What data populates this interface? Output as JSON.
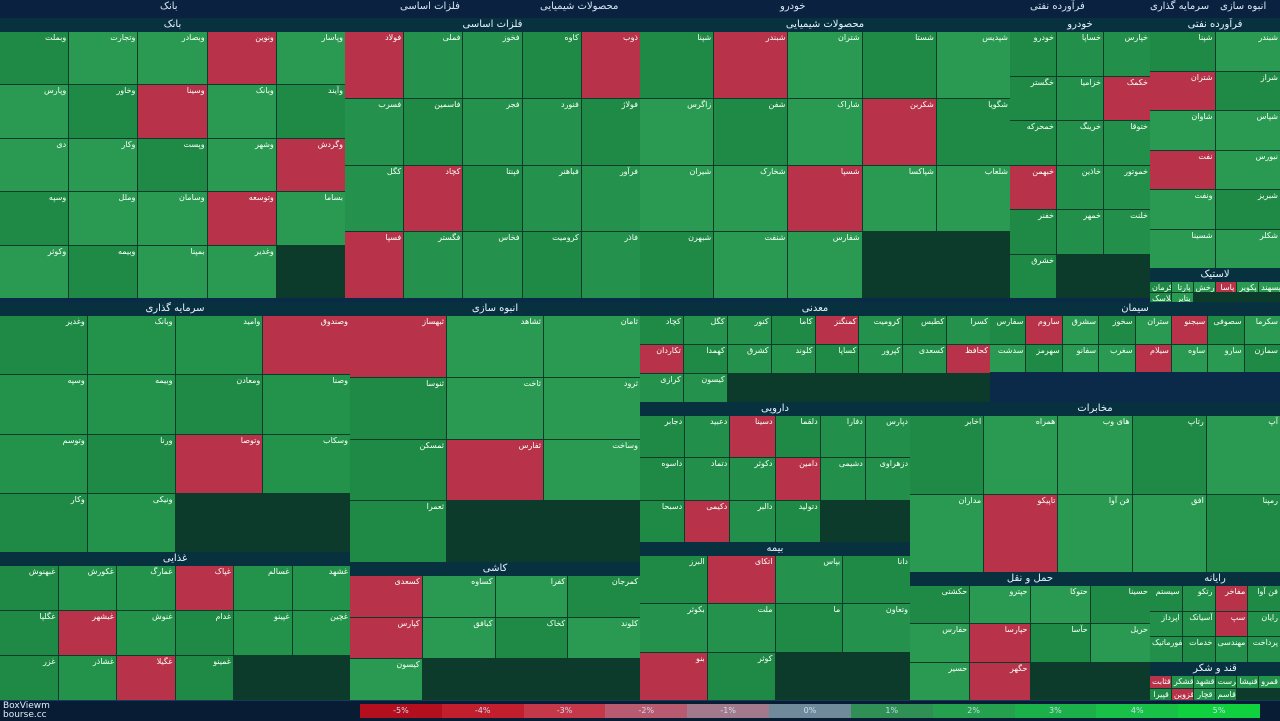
{
  "header": {
    "labels": [
      {
        "text": "بانک",
        "key": "a"
      },
      {
        "text": "فلزات اساسی",
        "key": "b"
      },
      {
        "text": "محصولات شیمیایی",
        "key": "c"
      },
      {
        "text": "خودرو",
        "key": "d"
      },
      {
        "text": "فرآورده نفتی",
        "key": "e"
      },
      {
        "text": "سرمایه گذاری",
        "key": "f"
      },
      {
        "text": "انبوه سازی",
        "key": "g"
      }
    ]
  },
  "sectors": [
    {
      "title": "بانک",
      "color": "#2a9a52",
      "tiles": [
        "وبملت",
        "وتجارت",
        "وبصادر",
        "ونوین",
        "وپاسار",
        "وپارس",
        "وخاور",
        "وسینا",
        "وبانک",
        "وآیند",
        "دی",
        "وکار",
        "وپست",
        "وشهر",
        "وگردش",
        "وسپه",
        "وملل",
        "وسامان",
        "وتوسعه",
        "بساما",
        "وکوثر",
        "وبیمه",
        "بمپنا",
        "وغدیر"
      ]
    },
    {
      "title": "فلزات اساسی",
      "color": "#24924c",
      "tiles": [
        "فولاد",
        "فملی",
        "فخوز",
        "کاوه",
        "ذوب",
        "فسرب",
        "فاسمین",
        "فجر",
        "فنورد",
        "فولاژ",
        "کگل",
        "کچاد",
        "فپنتا",
        "فباهنر",
        "فرآور",
        "فسپا",
        "فگستر",
        "فخاس",
        "کرومیت",
        "فاذر"
      ]
    },
    {
      "title": "محصولات شیمیایی",
      "color": "#2a9a52",
      "tiles": [
        "شپنا",
        "شبندر",
        "شتران",
        "شستا",
        "شپدیس",
        "زاگرس",
        "شفن",
        "شاراک",
        "شکربن",
        "شگویا",
        "شیران",
        "شخارک",
        "شسپا",
        "شپاکسا",
        "شلعاب",
        "شبهرن",
        "شنفت",
        "شفارس"
      ]
    },
    {
      "title": "خودرو",
      "color": "#22904a",
      "tiles": [
        "خودرو",
        "خساپا",
        "خپارس",
        "خگستر",
        "خزامیا",
        "خکمک",
        "خمحرکه",
        "خرینگ",
        "ختوقا",
        "خبهمن",
        "خاذین",
        "خموتور",
        "خفنر",
        "خمهر",
        "خلنت",
        "خشرق"
      ]
    },
    {
      "title": "فرآورده نفتی",
      "color": "#2a9a52",
      "tiles": [
        "شپنا",
        "شبندر",
        "شتران",
        "شراز",
        "شاوان",
        "شپاس",
        "نفت",
        "نبورس",
        "ونفت",
        "شبریز",
        "شسینا",
        "شکلر"
      ]
    },
    {
      "title": "سرمایه گذاری",
      "color": "#23934c",
      "tiles": [
        "وغدیر",
        "وبانک",
        "وامید",
        "وصندوق",
        "وسپه",
        "وبیمه",
        "ومعادن",
        "وصنا",
        "وتوسم",
        "ورنا",
        "وتوصا",
        "وسکاب",
        "وکار",
        "ونیکی"
      ]
    },
    {
      "title": "انبوه سازی",
      "color": "#2a9a52",
      "tiles": [
        "ثبهساز",
        "ثشاهد",
        "ثامان",
        "ثنوسا",
        "ثاخت",
        "ثرود",
        "ثمسکن",
        "ثفارس",
        "وساخت",
        "ثعمرا"
      ]
    },
    {
      "title": "معدنی",
      "color": "#24924c",
      "tiles": [
        "کچاد",
        "کگل",
        "کنور",
        "کاما",
        "کمنگنز",
        "کرومیت",
        "کطبس",
        "کسرا",
        "تکاردان",
        "کهمدا",
        "کشرق",
        "کلوند",
        "کساپا",
        "کپرور",
        "کسعدی",
        "کحافظ",
        "کرازی",
        "کیسون"
      ]
    },
    {
      "title": "سیمان",
      "color": "#2a9a52",
      "tiles": [
        "سفارس",
        "ساروم",
        "سشرق",
        "سخوز",
        "ستران",
        "سبجنو",
        "سصوفی",
        "سکرما",
        "سدشت",
        "سهرمز",
        "سفانو",
        "سغرب",
        "سیلام",
        "ساوه",
        "سارو",
        "سمازن"
      ]
    },
    {
      "title": "دارویی",
      "color": "#22904a",
      "tiles": [
        "دجابر",
        "دعبید",
        "دسینا",
        "دلقما",
        "دفارا",
        "دپارس",
        "داسوه",
        "دتماد",
        "دکوثر",
        "دامین",
        "دشیمی",
        "دزهراوی",
        "دسبحا",
        "دکیمی",
        "دالبر",
        "دتولید"
      ]
    },
    {
      "title": "مخابرات",
      "color": "#2a9a52",
      "tiles": [
        "اخابر",
        "همراه",
        "های وب",
        "رتاپ",
        "آپ",
        "مداران",
        "تاپیکو",
        "فن آوا",
        "افق",
        "رمپنا"
      ]
    },
    {
      "title": "غذایی",
      "color": "#23934c",
      "tiles": [
        "غبهنوش",
        "غکورش",
        "غمارگ",
        "غپاک",
        "غسالم",
        "غشهد",
        "غگلپا",
        "غبشهر",
        "غنوش",
        "غدام",
        "غپینو",
        "غچین",
        "غزر",
        "غشاذر",
        "غگیلا",
        "غمینو"
      ]
    },
    {
      "title": "کاشی",
      "color": "#2a9a52",
      "tiles": [
        "کسعدی",
        "کساوه",
        "کفرا",
        "کمرجان",
        "کپارس",
        "کبافق",
        "کخاک",
        "کلوند",
        "کیسون"
      ]
    },
    {
      "title": "بیمه",
      "color": "#24924c",
      "tiles": [
        "البرز",
        "اتکای",
        "بپاس",
        "دانا",
        "بکوثر",
        "ملت",
        "ما",
        "وتعاون",
        "بنو",
        "کوثر"
      ]
    },
    {
      "title": "حمل و نقل",
      "color": "#2a9a52",
      "tiles": [
        "حکشتی",
        "حپترو",
        "حتوکا",
        "حسینا",
        "حفارس",
        "حپارسا",
        "حآسا",
        "حریل",
        "حسیر",
        "حگهر"
      ]
    },
    {
      "title": "رایانه",
      "color": "#22904a",
      "tiles": [
        "سیستم",
        "رتکو",
        "مفاخر",
        "فن آوا",
        "اپرداز",
        "آسیاتک",
        "سپ",
        "رایان",
        "انفورماتیک",
        "خدمات",
        "مهندسی",
        "پرداخت"
      ]
    },
    {
      "title": "لاستیک",
      "color": "#2a9a52",
      "tiles": [
        "پکرمان",
        "پارتا",
        "پدرخش",
        "پاسا",
        "پکویر",
        "پسهند",
        "پلاسک",
        "پتایر"
      ]
    },
    {
      "title": "قند و شکر",
      "color": "#23934c",
      "tiles": [
        "قثابت",
        "قشکر",
        "قشهد",
        "قلرست",
        "قنیشا",
        "قمرو",
        "قپیرا",
        "قزوین",
        "قچار",
        "قاسم"
      ]
    }
  ],
  "footer": {
    "brand_line1": "BoxViewm",
    "brand_line2": "bourse.cc",
    "scale": [
      "-5%",
      "-4%",
      "-3%",
      "-2%",
      "-1%",
      "0%",
      "1%",
      "2%",
      "3%",
      "4%",
      "5%"
    ]
  }
}
